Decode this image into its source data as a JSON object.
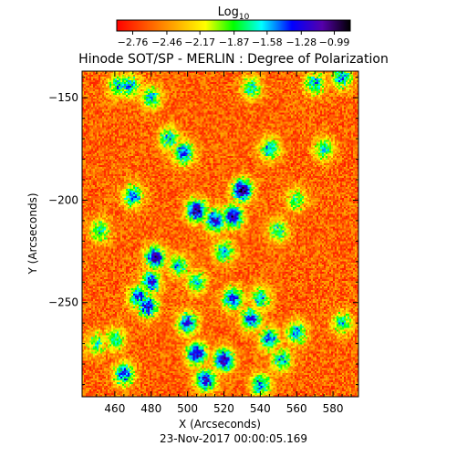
{
  "chart_data": {
    "type": "heatmap",
    "title": "Hinode SOT/SP - MERLIN : Degree of Polarization",
    "xlabel": "X (Arcseconds)",
    "ylabel": "Y (Arcseconds)",
    "timestamp": "23-Nov-2017 00:00:05.169",
    "xlim": [
      442,
      594
    ],
    "ylim": [
      -296,
      -137
    ],
    "x_ticks": [
      460,
      480,
      500,
      520,
      540,
      560,
      580
    ],
    "y_ticks": [
      -150,
      -200,
      -250
    ],
    "colorbar": {
      "label_prefix": "Log",
      "label_subscript": "10",
      "range": [
        -2.9,
        -0.85
      ],
      "tick_labels": [
        "-2.76",
        "-2.46",
        "-2.17",
        "-1.87",
        "-1.58",
        "-1.28",
        "-0.99"
      ],
      "tick_values": [
        -2.76,
        -2.46,
        -2.17,
        -1.87,
        -1.58,
        -1.28,
        -0.99
      ]
    },
    "background_level": -2.6,
    "features": [
      {
        "x": 505,
        "y": -205,
        "level": -1.05
      },
      {
        "x": 530,
        "y": -195,
        "level": -1.0
      },
      {
        "x": 525,
        "y": -208,
        "level": -1.15
      },
      {
        "x": 515,
        "y": -210,
        "level": -1.2
      },
      {
        "x": 498,
        "y": -177,
        "level": -1.35
      },
      {
        "x": 482,
        "y": -228,
        "level": -1.1
      },
      {
        "x": 480,
        "y": -240,
        "level": -1.3
      },
      {
        "x": 478,
        "y": -252,
        "level": -1.25
      },
      {
        "x": 473,
        "y": -247,
        "level": -1.4
      },
      {
        "x": 495,
        "y": -232,
        "level": -1.6
      },
      {
        "x": 500,
        "y": -260,
        "level": -1.3
      },
      {
        "x": 505,
        "y": -275,
        "level": -1.15
      },
      {
        "x": 520,
        "y": -278,
        "level": -1.1
      },
      {
        "x": 535,
        "y": -258,
        "level": -1.3
      },
      {
        "x": 525,
        "y": -248,
        "level": -1.35
      },
      {
        "x": 540,
        "y": -248,
        "level": -1.6
      },
      {
        "x": 510,
        "y": -288,
        "level": -1.2
      },
      {
        "x": 540,
        "y": -290,
        "level": -1.5
      },
      {
        "x": 465,
        "y": -285,
        "level": -1.35
      },
      {
        "x": 460,
        "y": -268,
        "level": -1.7
      },
      {
        "x": 552,
        "y": -278,
        "level": -1.6
      },
      {
        "x": 560,
        "y": -265,
        "level": -1.5
      },
      {
        "x": 480,
        "y": -150,
        "level": -1.6
      },
      {
        "x": 468,
        "y": -144,
        "level": -1.55
      },
      {
        "x": 462,
        "y": -144,
        "level": -1.6
      },
      {
        "x": 490,
        "y": -170,
        "level": -1.6
      },
      {
        "x": 545,
        "y": -175,
        "level": -1.6
      },
      {
        "x": 570,
        "y": -143,
        "level": -1.6
      },
      {
        "x": 585,
        "y": -140,
        "level": -1.5
      },
      {
        "x": 535,
        "y": -145,
        "level": -1.7
      },
      {
        "x": 470,
        "y": -198,
        "level": -1.45
      },
      {
        "x": 452,
        "y": -215,
        "level": -1.7
      },
      {
        "x": 550,
        "y": -215,
        "level": -1.7
      },
      {
        "x": 560,
        "y": -200,
        "level": -1.8
      },
      {
        "x": 575,
        "y": -175,
        "level": -1.7
      },
      {
        "x": 585,
        "y": -260,
        "level": -1.7
      },
      {
        "x": 545,
        "y": -268,
        "level": -1.45
      },
      {
        "x": 505,
        "y": -240,
        "level": -1.7
      },
      {
        "x": 520,
        "y": -225,
        "level": -1.6
      },
      {
        "x": 450,
        "y": -270,
        "level": -1.8
      }
    ]
  }
}
